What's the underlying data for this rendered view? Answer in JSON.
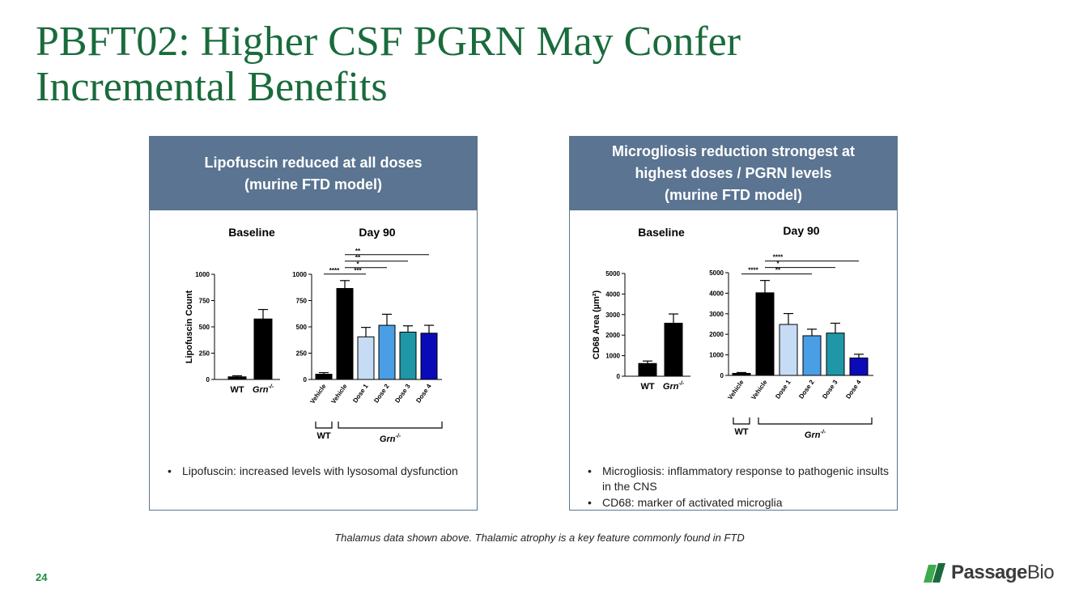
{
  "slide": {
    "title_line1": "PBFT02: Higher CSF PGRN May Confer",
    "title_line2": "Incremental Benefits",
    "footnote": "Thalamus data shown above. Thalamic atrophy is a key feature commonly found in FTD",
    "page_number": "24",
    "brand_name_main": "Passage",
    "brand_name_bio": "Bio",
    "colors": {
      "title": "#1a6b3c",
      "header_bg": "#5a7491",
      "logo_green_dark": "#1a6b3c",
      "logo_green_light": "#3daa4f"
    }
  },
  "panels": [
    {
      "header_line1": "Lipofuscin reduced at all doses",
      "header_line2": "(murine FTD model)",
      "header_line3": "",
      "bullets": [
        "Lipofuscin: increased levels with lysosomal dysfunction"
      ]
    },
    {
      "header_line1": "Microgliosis reduction strongest at",
      "header_line2": "highest doses / PGRN levels",
      "header_line3": "(murine FTD model)",
      "bullets": [
        "Microgliosis: inflammatory response to pathogenic insults in the CNS",
        "CD68: marker of activated microglia"
      ]
    }
  ],
  "chart_data": [
    {
      "type": "bar",
      "panel": 0,
      "title": "Baseline",
      "ylabel": "Lipofuscin Count",
      "ylim": [
        0,
        1000
      ],
      "yticks": [
        "0",
        "250",
        "500",
        "750",
        "1000"
      ],
      "categories": [
        "WT",
        "Grn"
      ],
      "category_superscripts": [
        "",
        "-/-"
      ],
      "values": [
        25,
        575
      ],
      "errors": [
        10,
        90
      ],
      "colors": [
        "#000000",
        "#000000"
      ]
    },
    {
      "type": "bar",
      "panel": 0,
      "title": "Day 90",
      "ylabel": "",
      "ylim": [
        0,
        1000
      ],
      "yticks": [
        "0",
        "250",
        "500",
        "750",
        "1000"
      ],
      "categories": [
        "Vehicle",
        "Vehicle",
        "Dose 1",
        "Dose 2",
        "Dose 3",
        "Dose 4"
      ],
      "values": [
        50,
        865,
        405,
        515,
        450,
        440
      ],
      "errors": [
        15,
        75,
        90,
        105,
        60,
        75
      ],
      "colors": [
        "#000000",
        "#000000",
        "#c6dcf5",
        "#4a9ee6",
        "#1f97a6",
        "#0a0ab8"
      ],
      "group_labels": [
        "WT",
        "Grn"
      ],
      "group_superscripts": [
        "",
        "-/-"
      ],
      "significance": [
        {
          "from": 0,
          "to": 1,
          "label": "****"
        },
        {
          "from": 1,
          "to": 2,
          "label": "***"
        },
        {
          "from": 1,
          "to": 3,
          "label": "*"
        },
        {
          "from": 1,
          "to": 4,
          "label": "**"
        },
        {
          "from": 1,
          "to": 5,
          "label": "**"
        }
      ]
    },
    {
      "type": "bar",
      "panel": 1,
      "title": "Baseline",
      "ylabel": "CD68 Area (µm²)",
      "ylim": [
        0,
        5000
      ],
      "yticks": [
        "0",
        "1000",
        "2000",
        "3000",
        "4000",
        "5000"
      ],
      "categories": [
        "WT",
        "Grn"
      ],
      "category_superscripts": [
        "",
        "-/-"
      ],
      "values": [
        620,
        2580
      ],
      "errors": [
        120,
        450
      ],
      "colors": [
        "#000000",
        "#000000"
      ]
    },
    {
      "type": "bar",
      "panel": 1,
      "title": "Day 90",
      "ylabel": "",
      "ylim": [
        0,
        5000
      ],
      "yticks": [
        "0",
        "1000",
        "2000",
        "3000",
        "4000",
        "5000"
      ],
      "categories": [
        "Vehicle",
        "Vehicle",
        "Dose 1",
        "Dose 2",
        "Dose 3",
        "Dose 4"
      ],
      "values": [
        100,
        4020,
        2480,
        1930,
        2060,
        850
      ],
      "errors": [
        40,
        600,
        530,
        320,
        480,
        180
      ],
      "colors": [
        "#000000",
        "#000000",
        "#c6dcf5",
        "#4a9ee6",
        "#1f97a6",
        "#0a0ab8"
      ],
      "group_labels": [
        "WT",
        "Grn"
      ],
      "group_superscripts": [
        "",
        "-/-"
      ],
      "significance": [
        {
          "from": 0,
          "to": 1,
          "label": "****"
        },
        {
          "from": 1,
          "to": 3,
          "label": "**"
        },
        {
          "from": 1,
          "to": 4,
          "label": "*"
        },
        {
          "from": 1,
          "to": 5,
          "label": "****"
        }
      ]
    }
  ]
}
